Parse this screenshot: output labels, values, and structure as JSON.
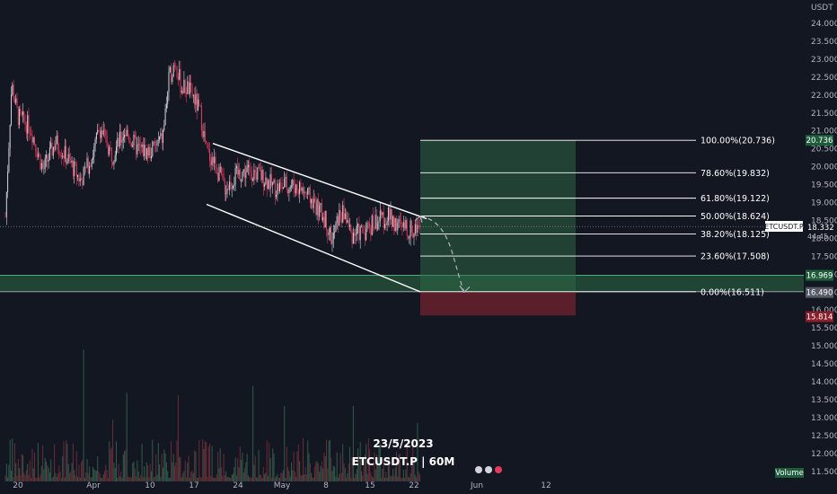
{
  "chart_data": {
    "type": "candlestick",
    "symbol": "ETCUSDT.P",
    "interval": "60M",
    "date_caption": "23/5/2023",
    "caption": "ETCUSDT.P | 60M",
    "currency": "USDT",
    "y_ticks": [
      "24.000",
      "23.500",
      "23.000",
      "22.500",
      "22.000",
      "21.500",
      "21.000",
      "20.500",
      "20.000",
      "19.500",
      "19.000",
      "18.500",
      "18.000",
      "17.500",
      "17.000",
      "16.500",
      "16.000",
      "15.500",
      "15.000",
      "14.500",
      "14.000",
      "13.500",
      "13.000",
      "12.500",
      "12.000",
      "11.500"
    ],
    "x_ticks": [
      {
        "label": "20",
        "date": "2023-03-20"
      },
      {
        "label": "Apr",
        "date": "2023-04-01"
      },
      {
        "label": "10",
        "date": "2023-04-10"
      },
      {
        "label": "17",
        "date": "2023-04-17"
      },
      {
        "label": "24",
        "date": "2023-04-24"
      },
      {
        "label": "May",
        "date": "2023-05-01"
      },
      {
        "label": "8",
        "date": "2023-05-08"
      },
      {
        "label": "15",
        "date": "2023-05-15"
      },
      {
        "label": "22",
        "date": "2023-05-22"
      },
      {
        "label": "Jun",
        "date": "2023-06-01"
      },
      {
        "label": "12",
        "date": "2023-06-12"
      }
    ],
    "price_path": [
      [
        "2023-03-18",
        18.6
      ],
      [
        "2023-03-19",
        22.3
      ],
      [
        "2023-03-20",
        21.4
      ],
      [
        "2023-03-22",
        21.1
      ],
      [
        "2023-03-24",
        19.9
      ],
      [
        "2023-03-26",
        20.7
      ],
      [
        "2023-03-28",
        20.2
      ],
      [
        "2023-03-30",
        19.6
      ],
      [
        "2023-04-01",
        20.4
      ],
      [
        "2023-04-02",
        21.1
      ],
      [
        "2023-04-04",
        20.3
      ],
      [
        "2023-04-06",
        21.0
      ],
      [
        "2023-04-08",
        20.5
      ],
      [
        "2023-04-10",
        20.4
      ],
      [
        "2023-04-12",
        20.8
      ],
      [
        "2023-04-13",
        22.4
      ],
      [
        "2023-04-14",
        23.0
      ],
      [
        "2023-04-15",
        22.2
      ],
      [
        "2023-04-16",
        22.2
      ],
      [
        "2023-04-17",
        21.9
      ],
      [
        "2023-04-18",
        21.5
      ],
      [
        "2023-04-19",
        20.4
      ],
      [
        "2023-04-20",
        20.2
      ],
      [
        "2023-04-22",
        19.4
      ],
      [
        "2023-04-24",
        19.8
      ],
      [
        "2023-04-26",
        19.9
      ],
      [
        "2023-04-28",
        19.7
      ],
      [
        "2023-04-30",
        19.4
      ],
      [
        "2023-05-02",
        19.5
      ],
      [
        "2023-05-04",
        19.4
      ],
      [
        "2023-05-06",
        19.0
      ],
      [
        "2023-05-08",
        18.5
      ],
      [
        "2023-05-09",
        17.9
      ],
      [
        "2023-05-10",
        18.6
      ],
      [
        "2023-05-11",
        18.7
      ],
      [
        "2023-05-12",
        18.1
      ],
      [
        "2023-05-14",
        18.2
      ],
      [
        "2023-05-16",
        18.5
      ],
      [
        "2023-05-18",
        18.6
      ],
      [
        "2023-05-20",
        18.3
      ],
      [
        "2023-05-22",
        18.2
      ],
      [
        "2023-05-23",
        18.6
      ]
    ],
    "channel": {
      "upper": [
        [
          "2023-04-20",
          20.65
        ],
        [
          "2023-05-24",
          18.55
        ]
      ],
      "lower": [
        [
          "2023-04-19",
          18.95
        ],
        [
          "2023-05-23",
          16.51
        ]
      ]
    },
    "projection": [
      [
        "2023-05-23",
        18.62
      ],
      [
        "2023-05-26",
        18.3
      ],
      [
        "2023-05-28",
        17.4
      ],
      [
        "2023-05-30",
        16.5
      ]
    ],
    "fib_levels": [
      {
        "label": "100.00%(20.736)",
        "price": 20.736
      },
      {
        "label": "78.60%(19.832)",
        "price": 19.832
      },
      {
        "label": "61.80%(19.122)",
        "price": 19.122
      },
      {
        "label": "50.00%(18.624)",
        "price": 18.624
      },
      {
        "label": "38.20%(18.125)",
        "price": 18.125
      },
      {
        "label": "23.60%(17.508)",
        "price": 17.508
      },
      {
        "label": "0.00%(16.511)",
        "price": 16.511
      }
    ],
    "fib_range": {
      "start": "2023-05-23",
      "end": "2023-06-01"
    },
    "stop_zone": {
      "from": 15.85,
      "to": 16.511
    },
    "support_zone": {
      "from": 16.511,
      "to": 16.969
    },
    "price_badges": [
      {
        "price": 20.736,
        "label": "20.736",
        "color": "#1e5c3a"
      },
      {
        "price": 16.969,
        "label": "16.969",
        "color": "#1e5c3a"
      },
      {
        "price": 16.49,
        "label": "16.490",
        "color": "#555a66"
      },
      {
        "price": 15.814,
        "label": "15.814",
        "color": "#8b1e2b"
      }
    ],
    "last_price": {
      "price": 18.332,
      "label": "18.332",
      "countdown": "44:45",
      "symbol_label": "ETCUSDT.P"
    },
    "volume_label": "Volume",
    "colors": {
      "up": "#d1d4dc",
      "down": "#e53b5a",
      "fib_green": "#2e6b45",
      "stop_red": "#5a1f2a",
      "channel": "#ffffff"
    }
  }
}
